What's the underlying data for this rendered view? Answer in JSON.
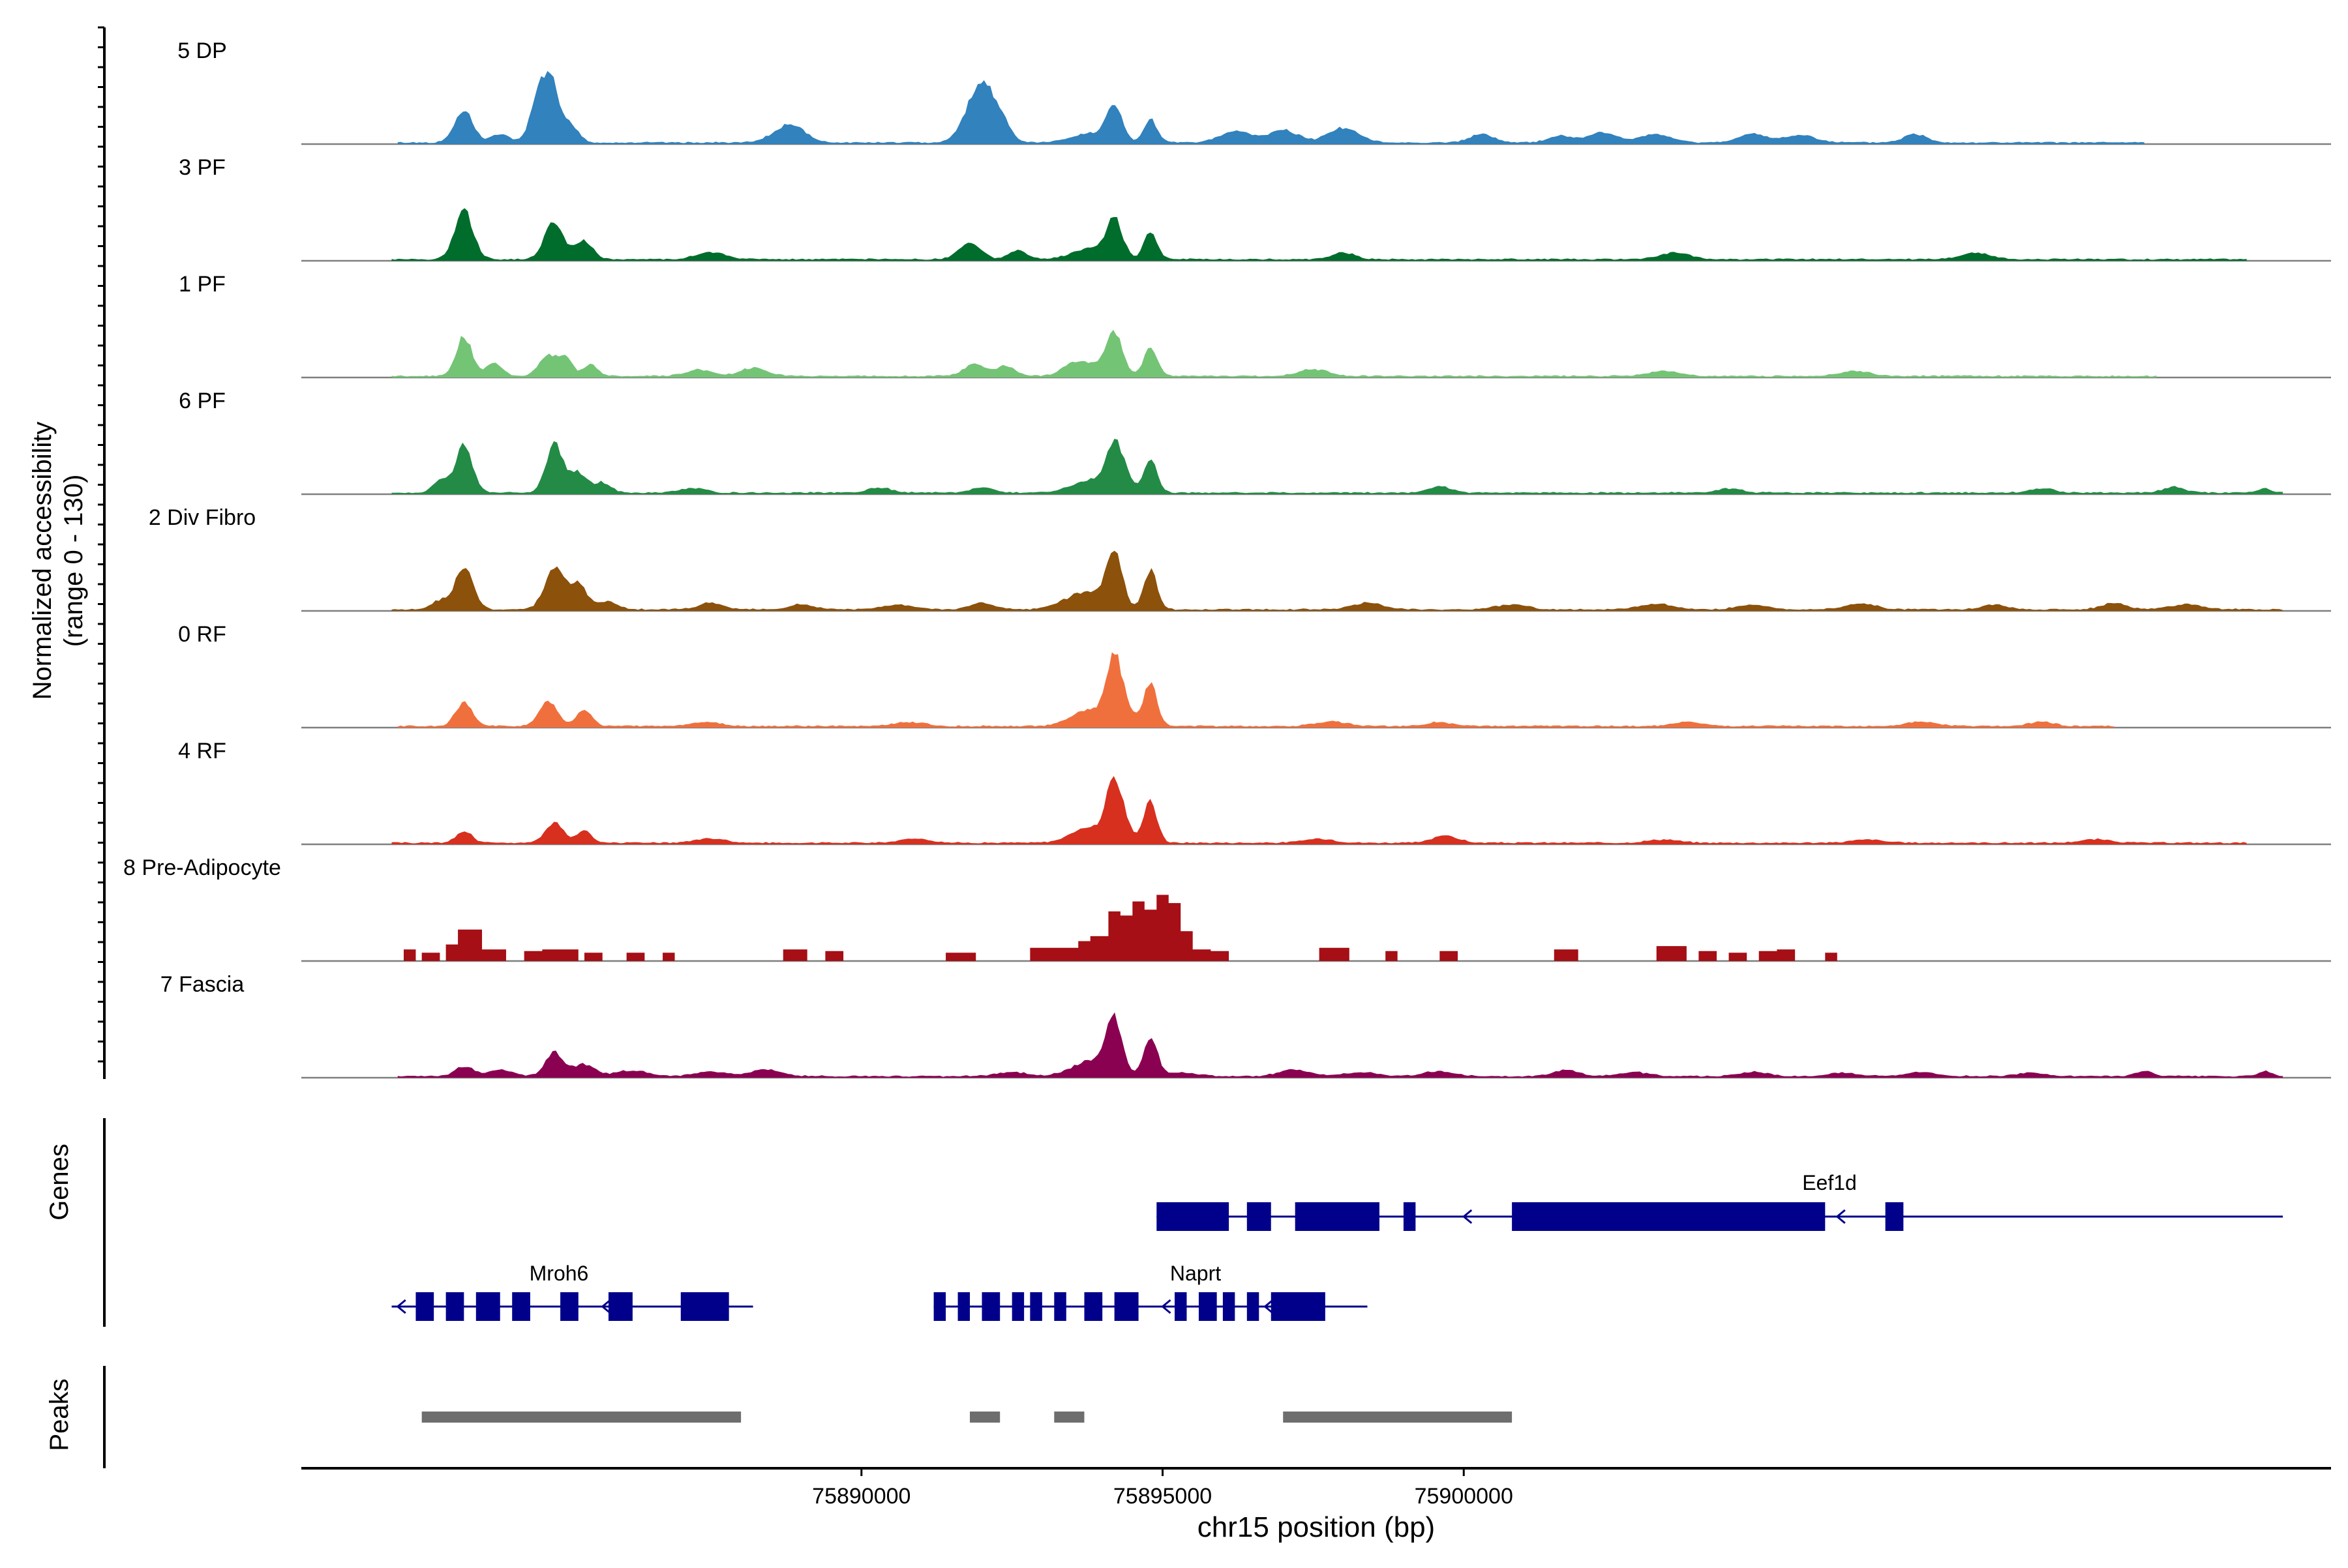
{
  "chart_data": {
    "type": "area",
    "xlabel": "chr15 position (bp)",
    "ylabel_line1": "Normalized accessibility",
    "ylabel_line2": "(range 0 - 130)",
    "y_range": [
      0,
      130
    ],
    "xlim": [
      75880700,
      75914400
    ],
    "x_ticks": [
      75890000,
      75895000,
      75900000
    ],
    "x_tick_labels": [
      "75890000",
      "75895000",
      "75900000"
    ],
    "tracks": [
      {
        "name": "5 DP",
        "color": "#3182bd",
        "range": [
          75882300,
          75911300
        ],
        "peaks": [
          [
            75883400,
            40,
            150
          ],
          [
            75884000,
            10,
            150
          ],
          [
            75884700,
            70,
            160
          ],
          [
            75884900,
            42,
            120
          ],
          [
            75885200,
            20,
            120
          ],
          [
            75888800,
            22,
            250
          ],
          [
            75891800,
            22,
            200
          ],
          [
            75892000,
            55,
            180
          ],
          [
            75892300,
            30,
            160
          ],
          [
            75896200,
            14,
            250
          ],
          [
            75897000,
            15,
            250
          ],
          [
            75898000,
            18,
            250
          ],
          [
            75900300,
            10,
            200
          ],
          [
            75901600,
            8,
            200
          ],
          [
            75902300,
            12,
            250
          ],
          [
            75903200,
            10,
            250
          ],
          [
            75904800,
            10,
            250
          ],
          [
            75905600,
            9,
            250
          ],
          [
            75907500,
            10,
            200
          ]
        ]
      },
      {
        "name": "3 PF",
        "color": "#006d2c",
        "range": [
          75882200,
          75913000
        ],
        "peaks": [
          [
            75883400,
            60,
            150
          ],
          [
            75884900,
            45,
            160
          ],
          [
            75885400,
            22,
            140
          ],
          [
            75887500,
            8,
            250
          ],
          [
            75891800,
            20,
            180
          ],
          [
            75892600,
            10,
            150
          ],
          [
            75898000,
            8,
            200
          ],
          [
            75903500,
            8,
            250
          ],
          [
            75908500,
            8,
            250
          ]
        ]
      },
      {
        "name": "1 PF",
        "color": "#74c476",
        "range": [
          75882200,
          75911500
        ],
        "peaks": [
          [
            75883400,
            48,
            130
          ],
          [
            75883900,
            15,
            140
          ],
          [
            75884800,
            26,
            150
          ],
          [
            75885100,
            20,
            110
          ],
          [
            75885500,
            14,
            120
          ],
          [
            75887300,
            8,
            200
          ],
          [
            75888200,
            10,
            220
          ],
          [
            75891900,
            15,
            180
          ],
          [
            75892400,
            12,
            150
          ],
          [
            75893500,
            8,
            180
          ],
          [
            75897500,
            8,
            250
          ],
          [
            75903300,
            6,
            250
          ],
          [
            75906500,
            6,
            250
          ]
        ]
      },
      {
        "name": "6 PF",
        "color": "#238b45",
        "range": [
          75882200,
          75913600
        ],
        "peaks": [
          [
            75883400,
            58,
            140
          ],
          [
            75883000,
            15,
            120
          ],
          [
            75884900,
            58,
            140
          ],
          [
            75885300,
            24,
            140
          ],
          [
            75885700,
            12,
            140
          ],
          [
            75887200,
            6,
            200
          ],
          [
            75890300,
            6,
            200
          ],
          [
            75892000,
            6,
            200
          ],
          [
            75894400,
            15,
            100
          ],
          [
            75899600,
            8,
            180
          ],
          [
            75904400,
            5,
            200
          ],
          [
            75909600,
            5,
            200
          ],
          [
            75911800,
            7,
            180
          ],
          [
            75913300,
            5,
            100
          ]
        ]
      },
      {
        "name": "2 Div Fibro",
        "color": "#8c510a",
        "range": [
          75882200,
          75913600
        ],
        "peaks": [
          [
            75883400,
            50,
            150
          ],
          [
            75883000,
            10,
            150
          ],
          [
            75884900,
            50,
            160
          ],
          [
            75885300,
            30,
            140
          ],
          [
            75885800,
            10,
            160
          ],
          [
            75887500,
            8,
            200
          ],
          [
            75889000,
            6,
            200
          ],
          [
            75890600,
            6,
            250
          ],
          [
            75892000,
            8,
            200
          ],
          [
            75893400,
            6,
            250
          ],
          [
            75898400,
            8,
            250
          ],
          [
            75900800,
            6,
            250
          ],
          [
            75903200,
            7,
            250
          ],
          [
            75904800,
            6,
            250
          ],
          [
            75906600,
            7,
            250
          ],
          [
            75908800,
            6,
            200
          ],
          [
            75910800,
            8,
            200
          ],
          [
            75912000,
            6,
            250
          ]
        ]
      },
      {
        "name": "0 RF",
        "color": "#f0703d",
        "range": [
          75882300,
          75910800
        ],
        "peaks": [
          [
            75883400,
            28,
            140
          ],
          [
            75884800,
            30,
            150
          ],
          [
            75885400,
            20,
            130
          ],
          [
            75887400,
            5,
            250
          ],
          [
            75890800,
            5,
            250
          ],
          [
            75894400,
            13,
            180
          ],
          [
            75897800,
            6,
            250
          ],
          [
            75899600,
            5,
            200
          ],
          [
            75903700,
            5,
            250
          ],
          [
            75907600,
            5,
            250
          ],
          [
            75909600,
            5,
            200
          ]
        ]
      },
      {
        "name": "4 RF",
        "color": "#d7301f",
        "range": [
          75882200,
          75913000
        ],
        "peaks": [
          [
            75883400,
            14,
            130
          ],
          [
            75884900,
            24,
            150
          ],
          [
            75885400,
            14,
            120
          ],
          [
            75887500,
            5,
            250
          ],
          [
            75890900,
            5,
            250
          ],
          [
            75894400,
            10,
            160
          ],
          [
            75897600,
            5,
            250
          ],
          [
            75899700,
            9,
            200
          ],
          [
            75903300,
            4,
            250
          ],
          [
            75906700,
            4,
            250
          ],
          [
            75910500,
            4,
            250
          ]
        ]
      },
      {
        "name": "8 Pre-Adipocyte",
        "color": "#a50f15",
        "range": [
          75882300,
          75908600
        ],
        "blocks": [
          [
            75882400,
            75882600,
            14
          ],
          [
            75882700,
            75883000,
            10
          ],
          [
            75883100,
            75883300,
            20
          ],
          [
            75883300,
            75883700,
            38
          ],
          [
            75883700,
            75884100,
            14
          ],
          [
            75884400,
            75884700,
            12
          ],
          [
            75884700,
            75885300,
            14
          ],
          [
            75885400,
            75885700,
            10
          ],
          [
            75886100,
            75886400,
            10
          ],
          [
            75886700,
            75886900,
            10
          ],
          [
            75888700,
            75889100,
            14
          ],
          [
            75889400,
            75889700,
            12
          ],
          [
            75891400,
            75891900,
            10
          ],
          [
            75892800,
            75893600,
            16
          ],
          [
            75893600,
            75893800,
            24
          ],
          [
            75893800,
            75894300,
            10
          ],
          [
            75895000,
            75895300,
            12
          ],
          [
            75895300,
            75895800,
            14
          ],
          [
            75895800,
            75896100,
            12
          ],
          [
            75897600,
            75898100,
            16
          ],
          [
            75898700,
            75898900,
            12
          ],
          [
            75899600,
            75899900,
            12
          ],
          [
            75901500,
            75901900,
            14
          ],
          [
            75903200,
            75903700,
            18
          ],
          [
            75903900,
            75904200,
            12
          ],
          [
            75904400,
            75904700,
            10
          ],
          [
            75904900,
            75905200,
            12
          ],
          [
            75905200,
            75905500,
            14
          ],
          [
            75906000,
            75906200,
            10
          ]
        ]
      },
      {
        "name": "7 Fascia",
        "color": "#8a0151",
        "range": [
          75882300,
          75913600
        ],
        "peaks": [
          [
            75883400,
            12,
            150
          ],
          [
            75884000,
            8,
            200
          ],
          [
            75884900,
            28,
            150
          ],
          [
            75885400,
            14,
            180
          ],
          [
            75886200,
            7,
            250
          ],
          [
            75887500,
            6,
            250
          ],
          [
            75888400,
            8,
            250
          ],
          [
            75892500,
            5,
            250
          ],
          [
            75895300,
            5,
            250
          ],
          [
            75897200,
            8,
            250
          ],
          [
            75898300,
            5,
            250
          ],
          [
            75899600,
            6,
            250
          ],
          [
            75901700,
            8,
            200
          ],
          [
            75902800,
            5,
            250
          ],
          [
            75904800,
            5,
            250
          ],
          [
            75906300,
            4,
            250
          ],
          [
            75907600,
            5,
            250
          ],
          [
            75909400,
            4,
            250
          ],
          [
            75911300,
            6,
            150
          ],
          [
            75913300,
            6,
            100
          ]
        ]
      }
    ],
    "shared_peaks": [
      [
        75894200,
        72,
        130
      ],
      [
        75894800,
        52,
        110
      ],
      [
        75893800,
        20,
        300
      ]
    ],
    "shared_peak_tracks": [
      "5 DP",
      "3 PF",
      "1 PF",
      "6 PF",
      "2 Div Fibro",
      "0 RF",
      "4 RF",
      "7 Fascia"
    ],
    "shared_peak_heights": [
      0.55,
      0.65,
      0.68,
      0.78,
      0.9,
      1.0,
      0.95,
      0.0,
      0.92
    ],
    "genes_label": "Genes",
    "genes": [
      {
        "name": "Eef1d",
        "strand": "-",
        "start": 75894900,
        "end": 75913600,
        "exons": [
          [
            75894900,
            75896100
          ],
          [
            75896400,
            75896800
          ],
          [
            75897200,
            75898600
          ],
          [
            75899000,
            75899200
          ],
          [
            75900800,
            75906000
          ],
          [
            75907000,
            75907300
          ]
        ],
        "arrows": [
          75900000,
          75906200
        ]
      },
      {
        "name": "Mroh6",
        "strand": "-",
        "start": 75882200,
        "end": 75888200,
        "exons": [
          [
            75882600,
            75882900
          ],
          [
            75883100,
            75883400
          ],
          [
            75883600,
            75884000
          ],
          [
            75884200,
            75884500
          ],
          [
            75885000,
            75885300
          ],
          [
            75885800,
            75886200
          ],
          [
            75887000,
            75887800
          ]
        ],
        "arrows": [
          75882300,
          75884300,
          75885700
        ]
      },
      {
        "name": "Naprt",
        "strand": "-",
        "start": 75891200,
        "end": 75898400,
        "exons": [
          [
            75891200,
            75891400
          ],
          [
            75891600,
            75891800
          ],
          [
            75892000,
            75892300
          ],
          [
            75892500,
            75892700
          ],
          [
            75892800,
            75893000
          ],
          [
            75893200,
            75893400
          ],
          [
            75893700,
            75894000
          ],
          [
            75894200,
            75894600
          ],
          [
            75895200,
            75895400
          ],
          [
            75895600,
            75895900
          ],
          [
            75896000,
            75896200
          ],
          [
            75896400,
            75896600
          ],
          [
            75896800,
            75897700
          ]
        ],
        "arrows": [
          75895000,
          75896700
        ]
      }
    ],
    "peaks_label": "Peaks",
    "peak_regions": [
      [
        75882700,
        75888000
      ],
      [
        75891800,
        75892300
      ],
      [
        75893200,
        75893700
      ],
      [
        75897000,
        75900800
      ]
    ]
  }
}
